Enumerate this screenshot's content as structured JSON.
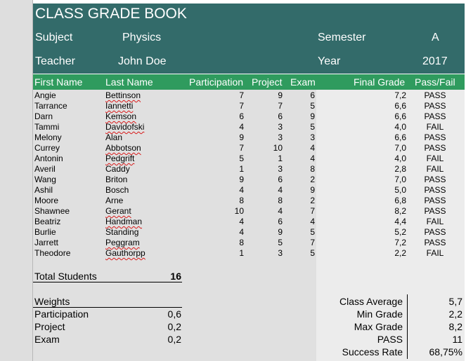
{
  "header": {
    "title": "CLASS GRADE BOOK",
    "subject_label": "Subject",
    "subject_value": "Physics",
    "semester_label": "Semester",
    "semester_value": "A",
    "teacher_label": "Teacher",
    "teacher_value": "John Doe",
    "year_label": "Year",
    "year_value": "2017"
  },
  "columns": {
    "first": "First Name",
    "last": "Last Name",
    "participation": "Participation",
    "project": "Project",
    "exam": "Exam",
    "final": "Final Grade",
    "passfail": "Pass/Fail"
  },
  "students": [
    {
      "first": "Angie",
      "last": "Bettinson",
      "part": "7",
      "proj": "9",
      "exam": "6",
      "final": "7,2",
      "pf": "PASS"
    },
    {
      "first": "Tarrance",
      "last": "Iannetti",
      "part": "7",
      "proj": "7",
      "exam": "5",
      "final": "6,6",
      "pf": "PASS"
    },
    {
      "first": "Darn",
      "last": "Kemson",
      "part": "6",
      "proj": "6",
      "exam": "9",
      "final": "6,6",
      "pf": "PASS"
    },
    {
      "first": "Tammi",
      "last": "Davidofski",
      "part": "4",
      "proj": "3",
      "exam": "5",
      "final": "4,0",
      "pf": "FAIL"
    },
    {
      "first": "Melony",
      "last": "Alan",
      "part": "9",
      "proj": "3",
      "exam": "3",
      "final": "6,6",
      "pf": "PASS"
    },
    {
      "first": "Currey",
      "last": "Abbotson",
      "part": "7",
      "proj": "10",
      "exam": "4",
      "final": "7,0",
      "pf": "PASS"
    },
    {
      "first": "Antonin",
      "last": "Pedgrift",
      "part": "5",
      "proj": "1",
      "exam": "4",
      "final": "4,0",
      "pf": "FAIL"
    },
    {
      "first": "Averil",
      "last": "Caddy",
      "part": "1",
      "proj": "3",
      "exam": "8",
      "final": "2,8",
      "pf": "FAIL"
    },
    {
      "first": "Wang",
      "last": "Briton",
      "part": "9",
      "proj": "6",
      "exam": "2",
      "final": "7,0",
      "pf": "PASS"
    },
    {
      "first": "Ashil",
      "last": "Bosch",
      "part": "4",
      "proj": "4",
      "exam": "9",
      "final": "5,0",
      "pf": "PASS"
    },
    {
      "first": "Moore",
      "last": "Arne",
      "part": "8",
      "proj": "8",
      "exam": "2",
      "final": "6,8",
      "pf": "PASS"
    },
    {
      "first": "Shawnee",
      "last": "Gerant",
      "part": "10",
      "proj": "4",
      "exam": "7",
      "final": "8,2",
      "pf": "PASS"
    },
    {
      "first": "Beatriz",
      "last": "Handman",
      "part": "4",
      "proj": "6",
      "exam": "4",
      "final": "4,4",
      "pf": "FAIL"
    },
    {
      "first": "Burlie",
      "last": "Standing",
      "part": "4",
      "proj": "9",
      "exam": "5",
      "final": "5,2",
      "pf": "PASS"
    },
    {
      "first": "Jarrett",
      "last": "Peggram",
      "part": "8",
      "proj": "5",
      "exam": "7",
      "final": "7,2",
      "pf": "PASS"
    },
    {
      "first": "Theodore",
      "last": "Gauthorpp",
      "part": "1",
      "proj": "3",
      "exam": "5",
      "final": "2,2",
      "pf": "FAIL"
    }
  ],
  "totals": {
    "label": "Total Students",
    "value": "16"
  },
  "weights": {
    "title": "Weights",
    "participation_label": "Participation",
    "participation_value": "0,6",
    "project_label": "Project",
    "project_value": "0,2",
    "exam_label": "Exam",
    "exam_value": "0,2"
  },
  "stats": {
    "avg_label": "Class Average",
    "avg_value": "5,7",
    "min_label": "Min Grade",
    "min_value": "2,2",
    "max_label": "Max Grade",
    "max_value": "8,2",
    "pass_label": "PASS",
    "pass_value": "11",
    "rate_label": "Success Rate",
    "rate_value": "68,75%"
  },
  "colors": {
    "header_bg": "#336b6a",
    "colheader_bg": "#2f9b5e",
    "spell_error": "#d81818"
  }
}
